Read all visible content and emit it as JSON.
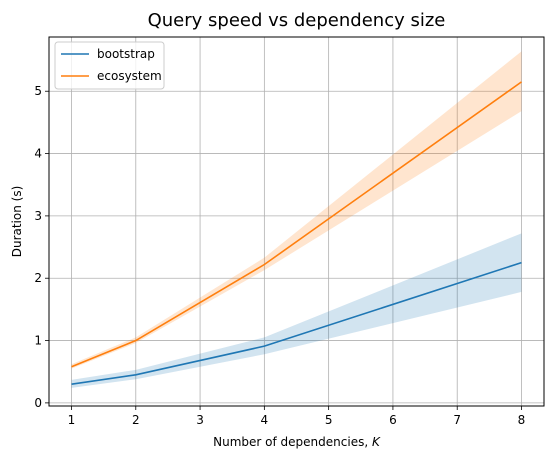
{
  "chart_data": {
    "type": "line",
    "title": "Query speed vs dependency size",
    "xlabel": "Number of dependencies, ",
    "xlabel_var": "K",
    "ylabel": "Duration (s)",
    "x": [
      1,
      2,
      4,
      8
    ],
    "xlim": [
      0.65,
      8.35
    ],
    "ylim": [
      -0.05,
      5.87
    ],
    "xticks": [
      1,
      2,
      3,
      4,
      5,
      6,
      7,
      8
    ],
    "yticks": [
      0,
      1,
      2,
      3,
      4,
      5
    ],
    "grid": true,
    "legend_position": "upper-left",
    "series": [
      {
        "name": "bootstrap",
        "color": "#1f77b4",
        "band_color": "#1f77b4",
        "values": [
          0.3,
          0.45,
          0.91,
          2.25
        ],
        "lower": [
          0.24,
          0.38,
          0.78,
          1.78
        ],
        "upper": [
          0.37,
          0.53,
          1.05,
          2.72
        ]
      },
      {
        "name": "ecosystem",
        "color": "#ff7f0e",
        "band_color": "#ff7f0e",
        "values": [
          0.58,
          1.0,
          2.22,
          5.15
        ],
        "lower": [
          0.55,
          0.96,
          2.13,
          4.68
        ],
        "upper": [
          0.62,
          1.05,
          2.33,
          5.64
        ]
      }
    ]
  }
}
